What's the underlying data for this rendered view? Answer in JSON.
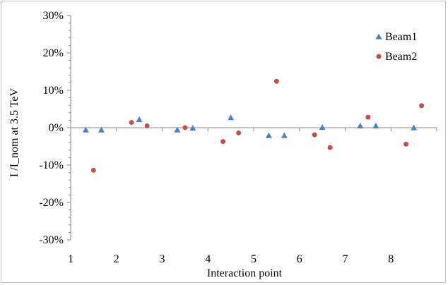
{
  "chart_data": {
    "type": "scatter",
    "title": "",
    "xlabel": "Interaction point",
    "ylabel": "I /I_nom at 3.5 TeV",
    "xlim": [
      1,
      9
    ],
    "ylim": [
      -30,
      30
    ],
    "x_ticks": [
      "1",
      "2",
      "3",
      "4",
      "5",
      "6",
      "7",
      "8"
    ],
    "y_ticks": [
      "30%",
      "20%",
      "10%",
      "0%",
      "-10%",
      "-20%",
      "-30%"
    ],
    "y_tick_values": [
      30,
      20,
      10,
      0,
      -10,
      -20,
      -30
    ],
    "x_tick_values": [
      1,
      2,
      3,
      4,
      5,
      6,
      7,
      8
    ],
    "grid": false,
    "legend_position": "top-right",
    "series": [
      {
        "name": "Beam1",
        "marker": "triangle",
        "color": "#4f81bd",
        "points": [
          {
            "x": 1.33,
            "y": -0.6
          },
          {
            "x": 1.67,
            "y": -0.6
          },
          {
            "x": 2.5,
            "y": 2.2
          },
          {
            "x": 3.33,
            "y": -0.6
          },
          {
            "x": 3.67,
            "y": -0.1
          },
          {
            "x": 4.5,
            "y": 2.7
          },
          {
            "x": 5.33,
            "y": -2.1
          },
          {
            "x": 5.67,
            "y": -2.1
          },
          {
            "x": 6.5,
            "y": 0.1
          },
          {
            "x": 7.33,
            "y": 0.5
          },
          {
            "x": 7.67,
            "y": 0.5
          },
          {
            "x": 8.5,
            "y": 0.0
          }
        ]
      },
      {
        "name": "Beam2",
        "marker": "circle",
        "color": "#c0504d",
        "points": [
          {
            "x": 1.5,
            "y": -11.4
          },
          {
            "x": 2.33,
            "y": 1.4
          },
          {
            "x": 2.67,
            "y": 0.5
          },
          {
            "x": 3.5,
            "y": 0.0
          },
          {
            "x": 4.33,
            "y": -3.7
          },
          {
            "x": 4.67,
            "y": -1.4
          },
          {
            "x": 5.5,
            "y": 12.4
          },
          {
            "x": 6.33,
            "y": -1.9
          },
          {
            "x": 6.67,
            "y": -5.3
          },
          {
            "x": 7.5,
            "y": 2.8
          },
          {
            "x": 8.33,
            "y": -4.4
          },
          {
            "x": 8.67,
            "y": 5.9
          }
        ]
      }
    ]
  }
}
